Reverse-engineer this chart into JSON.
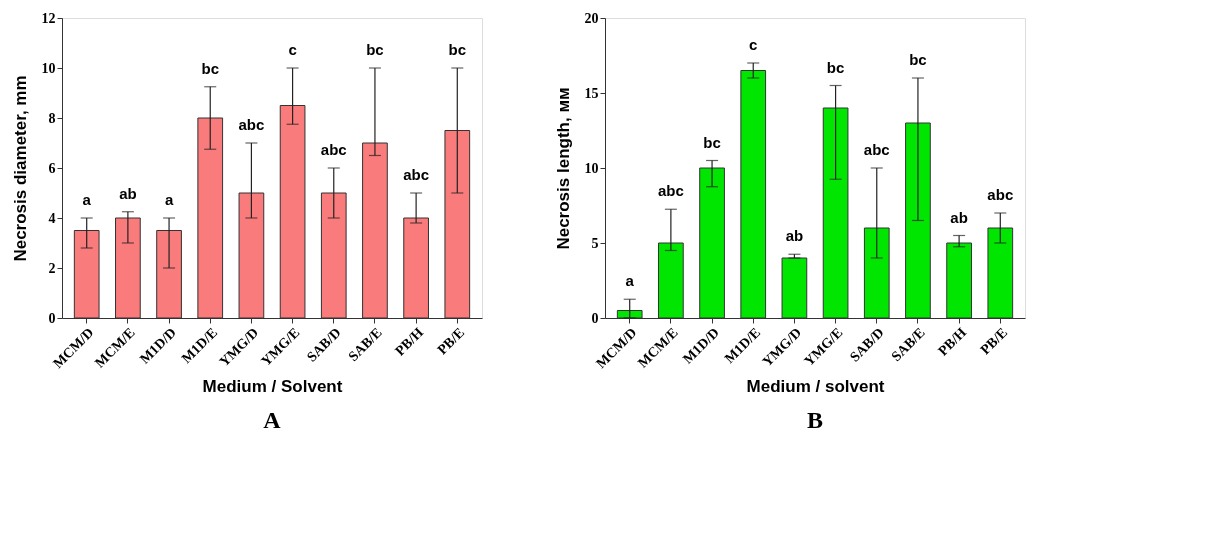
{
  "chart_data": [
    {
      "type": "bar",
      "title": "A",
      "xlabel": "Medium / Solvent",
      "ylabel": "Necrosis diameter, mm",
      "categories": [
        "MCM/D",
        "MCM/E",
        "M1D/D",
        "M1D/E",
        "YMG/D",
        "YMG/E",
        "SAB/D",
        "SAB/E",
        "PB/H",
        "PB/E"
      ],
      "values": [
        3.5,
        4,
        3.5,
        8,
        5,
        8.5,
        5,
        7,
        4,
        7.5
      ],
      "errors": [
        [
          2.8,
          4
        ],
        [
          3,
          4.25
        ],
        [
          2,
          4
        ],
        [
          6.75,
          9.25
        ],
        [
          4,
          7
        ],
        [
          7.75,
          10
        ],
        [
          4,
          6
        ],
        [
          6.5,
          10
        ],
        [
          3.8,
          5
        ],
        [
          5,
          10
        ]
      ],
      "color": "#fa7b7b",
      "ylim": [
        0,
        12
      ],
      "yticks": [
        0,
        2,
        4,
        6,
        8,
        10,
        12
      ],
      "grid": false,
      "annotations": [
        "a",
        "ab",
        "a",
        "bc",
        "abc",
        "c",
        "abc",
        "bc",
        "abc",
        "bc"
      ]
    },
    {
      "type": "bar",
      "title": "B",
      "xlabel": "Medium / solvent",
      "ylabel": "Necrosis length, мм",
      "categories": [
        "MCM/D",
        "MCM/E",
        "M1D/D",
        "M1D/E",
        "YMG/D",
        "YMG/E",
        "SAB/D",
        "SAB/E",
        "PB/H",
        "PB/E"
      ],
      "values": [
        0.5,
        5,
        10,
        16.5,
        4,
        14,
        6,
        13,
        5,
        6
      ],
      "errors": [
        [
          0,
          1.25
        ],
        [
          4.5,
          7.25
        ],
        [
          8.75,
          10.5
        ],
        [
          16,
          17
        ],
        [
          4,
          4.25
        ],
        [
          9.25,
          15.5
        ],
        [
          4,
          10
        ],
        [
          6.5,
          16
        ],
        [
          4.75,
          5.5
        ],
        [
          5,
          7
        ]
      ],
      "color": "#00e600",
      "ylim": [
        0,
        20
      ],
      "yticks": [
        0,
        5,
        10,
        15,
        20
      ],
      "grid": false,
      "annotations": [
        "a",
        "abc",
        "bc",
        "c",
        "ab",
        "bc",
        "abc",
        "bc",
        "ab",
        "abc"
      ]
    }
  ]
}
